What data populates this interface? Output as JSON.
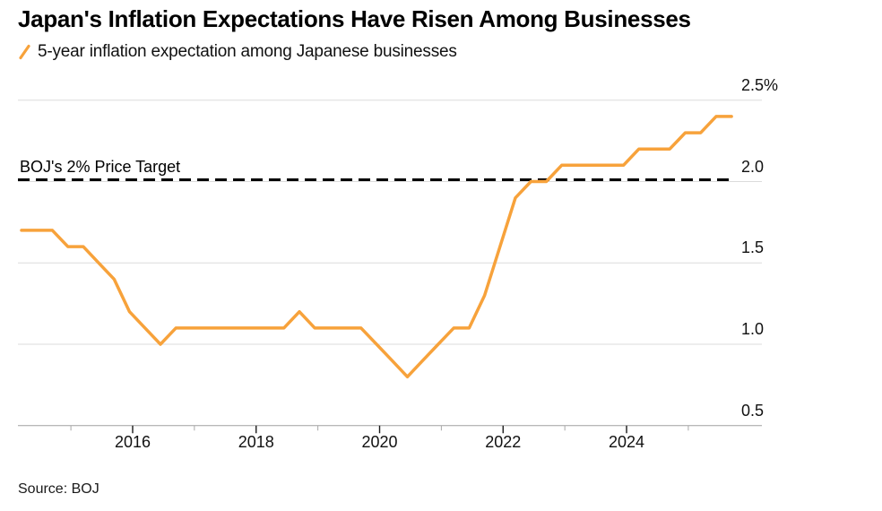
{
  "header": {
    "title": "Japan's Inflation Expectations Have Risen Among Businesses"
  },
  "legend": {
    "swatch_icon": "orange-slash-icon",
    "label": "5-year inflation expectation among Japanese businesses"
  },
  "annotation": {
    "target_label": "BOJ's 2% Price Target",
    "target_value": 2.0
  },
  "footer": {
    "source": "Source: BOJ"
  },
  "colors": {
    "series": "#F7A23B",
    "grid": "#DBDBDB",
    "axis": "#A0A0A0",
    "tick_major": "#1A1A1A",
    "tick_minor": "#A8A8A8",
    "target_line": "#000000",
    "text": "#111111",
    "title": "#000000"
  },
  "chart_data": {
    "type": "line",
    "title": "Japan's Inflation Expectations Have Risen Among Businesses",
    "series_name": "5-year inflation expectation among Japanese businesses",
    "unit": "%",
    "ylim": [
      0.5,
      2.5
    ],
    "grid": "horizontal",
    "legend_position": "top-left",
    "x_labels": [
      "Mar 2014",
      "Jun 2014",
      "Sep 2014",
      "Dec 2014",
      "Mar 2015",
      "Jun 2015",
      "Sep 2015",
      "Dec 2015",
      "Mar 2016",
      "Jun 2016",
      "Sep 2016",
      "Dec 2016",
      "Mar 2017",
      "Jun 2017",
      "Sep 2017",
      "Dec 2017",
      "Mar 2018",
      "Jun 2018",
      "Sep 2018",
      "Dec 2018",
      "Mar 2019",
      "Jun 2019",
      "Sep 2019",
      "Dec 2019",
      "Mar 2020",
      "Jun 2020",
      "Sep 2020",
      "Dec 2020",
      "Mar 2021",
      "Jun 2021",
      "Sep 2021",
      "Dec 2021",
      "Mar 2022",
      "Jun 2022",
      "Sep 2022",
      "Dec 2022",
      "Mar 2023",
      "Jun 2023",
      "Sep 2023",
      "Dec 2023",
      "Mar 2024",
      "Jun 2024",
      "Sep 2024",
      "Dec 2024",
      "Mar 2025",
      "Jun 2025",
      "Sep 2025"
    ],
    "values": [
      1.7,
      1.7,
      1.7,
      1.6,
      1.6,
      1.5,
      1.4,
      1.2,
      1.1,
      1.0,
      1.1,
      1.1,
      1.1,
      1.1,
      1.1,
      1.1,
      1.1,
      1.1,
      1.2,
      1.1,
      1.1,
      1.1,
      1.1,
      1.0,
      0.9,
      0.8,
      0.9,
      1.0,
      1.1,
      1.1,
      1.3,
      1.6,
      1.9,
      2.0,
      2.0,
      2.1,
      2.1,
      2.1,
      2.1,
      2.1,
      2.2,
      2.2,
      2.2,
      2.3,
      2.3,
      2.4,
      2.4
    ],
    "yticks": [
      {
        "value": 0.5,
        "label": "0.5"
      },
      {
        "value": 1.0,
        "label": "1.0"
      },
      {
        "value": 1.5,
        "label": "1.5"
      },
      {
        "value": 2.0,
        "label": "2.0"
      },
      {
        "value": 2.5,
        "label": "2.5%"
      }
    ],
    "xticks_major": [
      {
        "year": 2016,
        "label": "2016"
      },
      {
        "year": 2018,
        "label": "2018"
      },
      {
        "year": 2020,
        "label": "2020"
      },
      {
        "year": 2022,
        "label": "2022"
      },
      {
        "year": 2024,
        "label": "2024"
      }
    ],
    "xticks_minor": [
      2015,
      2017,
      2019,
      2021,
      2023,
      2025
    ]
  }
}
